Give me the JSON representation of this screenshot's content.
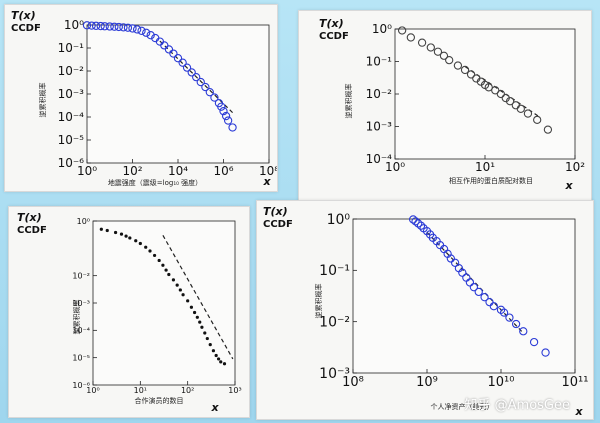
{
  "watermark": "知乎 @AmosGee",
  "chart_data": [
    {
      "type": "scatter",
      "corner_label_1": "T(x)",
      "corner_label_2": "CCDF",
      "ylabel": "逆累积概率",
      "xlabel": "地震强度（震级=log₁₀ 强度）",
      "xvar": "x",
      "log_x": true,
      "log_y": true,
      "xlim": [
        1,
        100000000
      ],
      "ylim": [
        1e-06,
        1
      ],
      "x_ticks": [
        {
          "v": 1,
          "label": "10⁰"
        },
        {
          "v": 100,
          "label": "10²"
        },
        {
          "v": 10000,
          "label": "10⁴"
        },
        {
          "v": 1000000,
          "label": "10⁶"
        },
        {
          "v": 100000000,
          "label": "10⁸"
        }
      ],
      "y_ticks": [
        {
          "v": 1,
          "label": "10⁰"
        },
        {
          "v": 0.1,
          "label": "10⁻¹"
        },
        {
          "v": 0.01,
          "label": "10⁻²"
        },
        {
          "v": 0.001,
          "label": "10⁻³"
        },
        {
          "v": 0.0001,
          "label": "10⁻⁴"
        },
        {
          "v": 1e-05,
          "label": "10⁻⁵"
        },
        {
          "v": 1e-06,
          "label": "10⁻⁶"
        }
      ],
      "marker": "circle",
      "marker_color": "#2b3bd6",
      "series": [
        {
          "points": [
            [
              1,
              0.97
            ],
            [
              1.6,
              0.94
            ],
            [
              2.5,
              0.92
            ],
            [
              4,
              0.9
            ],
            [
              6,
              0.88
            ],
            [
              10,
              0.86
            ],
            [
              16,
              0.84
            ],
            [
              25,
              0.82
            ],
            [
              40,
              0.79
            ],
            [
              63,
              0.76
            ],
            [
              100,
              0.71
            ],
            [
              160,
              0.64
            ],
            [
              250,
              0.56
            ],
            [
              400,
              0.46
            ],
            [
              630,
              0.36
            ],
            [
              1000,
              0.27
            ],
            [
              1600,
              0.19
            ],
            [
              2500,
              0.13
            ],
            [
              4000,
              0.087
            ],
            [
              6300,
              0.057
            ],
            [
              10000,
              0.036
            ],
            [
              16000,
              0.023
            ],
            [
              25000,
              0.014
            ],
            [
              40000,
              0.0087
            ],
            [
              63000,
              0.0054
            ],
            [
              100000,
              0.0033
            ],
            [
              160000,
              0.002
            ],
            [
              250000,
              0.0012
            ],
            [
              400000,
              0.0007
            ],
            [
              630000,
              0.0004
            ],
            [
              800000,
              0.00028
            ],
            [
              1000000,
              0.00018
            ],
            [
              1300000,
              0.00011
            ],
            [
              1600000,
              7e-05
            ],
            [
              2500000,
              3.5e-05
            ]
          ]
        }
      ],
      "reference_line": [
        [
          1600,
          0.2
        ],
        [
          3000000,
          0.00013
        ]
      ]
    },
    {
      "type": "scatter",
      "corner_label_1": "T(x)",
      "corner_label_2": "CCDF",
      "ylabel": "逆累积概率",
      "xlabel": "相互作用的蛋白质配对数目",
      "xvar": "x",
      "log_x": true,
      "log_y": true,
      "xlim": [
        1,
        100
      ],
      "ylim": [
        0.0001,
        1
      ],
      "x_ticks": [
        {
          "v": 1,
          "label": "10⁰"
        },
        {
          "v": 10,
          "label": "10¹"
        },
        {
          "v": 100,
          "label": "10²"
        }
      ],
      "y_ticks": [
        {
          "v": 1,
          "label": "10⁰"
        },
        {
          "v": 0.1,
          "label": "10⁻¹"
        },
        {
          "v": 0.01,
          "label": "10⁻²"
        },
        {
          "v": 0.001,
          "label": "10⁻³"
        },
        {
          "v": 0.0001,
          "label": "10⁻⁴"
        }
      ],
      "marker": "circle",
      "marker_color": "#444444",
      "series": [
        {
          "points": [
            [
              1.2,
              0.9
            ],
            [
              1.5,
              0.55
            ],
            [
              2,
              0.38
            ],
            [
              2.5,
              0.27
            ],
            [
              3,
              0.2
            ],
            [
              3.5,
              0.15
            ],
            [
              4,
              0.11
            ],
            [
              5,
              0.075
            ],
            [
              6,
              0.055
            ],
            [
              7,
              0.04
            ],
            [
              8,
              0.03
            ],
            [
              9,
              0.024
            ],
            [
              10,
              0.019
            ],
            [
              11,
              0.016
            ],
            [
              13,
              0.013
            ],
            [
              15,
              0.01
            ],
            [
              17,
              0.0075
            ],
            [
              19,
              0.006
            ],
            [
              22,
              0.0045
            ],
            [
              25,
              0.0035
            ],
            [
              30,
              0.0025
            ],
            [
              38,
              0.0016
            ],
            [
              50,
              0.0008
            ]
          ]
        }
      ],
      "reference_line": [
        [
          6,
          0.07
        ],
        [
          40,
          0.002
        ]
      ]
    },
    {
      "type": "scatter",
      "corner_label_1": "T(x)",
      "corner_label_2": "CCDF",
      "ylabel": "逆累积概率",
      "xlabel": "合作演员的数目",
      "xvar": "x",
      "log_x": true,
      "log_y": true,
      "xlim": [
        1,
        1000
      ],
      "ylim": [
        1e-06,
        1
      ],
      "x_ticks": [
        {
          "v": 1,
          "label": "10⁰"
        },
        {
          "v": 10,
          "label": "10¹"
        },
        {
          "v": 100,
          "label": "10²"
        },
        {
          "v": 1000,
          "label": "10³"
        }
      ],
      "y_ticks": [
        {
          "v": 1,
          "label": "10⁰"
        },
        {
          "v": 0.01,
          "label": "10⁻²"
        },
        {
          "v": 0.001,
          "label": "10⁻³"
        },
        {
          "v": 0.0001,
          "label": "10⁻⁴"
        },
        {
          "v": 1e-05,
          "label": "10⁻⁵"
        },
        {
          "v": 1e-06,
          "label": "10⁻⁶"
        }
      ],
      "marker": "dot",
      "marker_color": "#111111",
      "series": [
        {
          "points": [
            [
              1.5,
              0.5
            ],
            [
              2,
              0.45
            ],
            [
              3,
              0.38
            ],
            [
              4,
              0.33
            ],
            [
              5,
              0.28
            ],
            [
              6,
              0.24
            ],
            [
              8,
              0.19
            ],
            [
              10,
              0.15
            ],
            [
              13,
              0.11
            ],
            [
              16,
              0.08
            ],
            [
              20,
              0.055
            ],
            [
              25,
              0.036
            ],
            [
              30,
              0.024
            ],
            [
              35,
              0.016
            ],
            [
              40,
              0.011
            ],
            [
              50,
              0.007
            ],
            [
              60,
              0.0045
            ],
            [
              70,
              0.003
            ],
            [
              80,
              0.002
            ],
            [
              100,
              0.0012
            ],
            [
              120,
              0.0007
            ],
            [
              140,
              0.00045
            ],
            [
              160,
              0.0003
            ],
            [
              180,
              0.0002
            ],
            [
              200,
              0.00013
            ],
            [
              230,
              8e-05
            ],
            [
              260,
              5e-05
            ],
            [
              300,
              3e-05
            ],
            [
              350,
              1.8e-05
            ],
            [
              400,
              1.2e-05
            ],
            [
              450,
              9e-06
            ],
            [
              500,
              7e-06
            ],
            [
              600,
              6e-06
            ]
          ]
        }
      ],
      "reference_line": [
        [
          30,
          0.3
        ],
        [
          900,
          9e-06
        ]
      ]
    },
    {
      "type": "scatter",
      "corner_label_1": "T(x)",
      "corner_label_2": "CCDF",
      "ylabel": "逆累积概率",
      "xlabel": "个人净资产（美元）",
      "xvar": "x",
      "log_x": true,
      "log_y": true,
      "xlim": [
        100000000,
        100000000000
      ],
      "ylim": [
        0.001,
        1
      ],
      "x_ticks": [
        {
          "v": 100000000,
          "label": "10⁸"
        },
        {
          "v": 1000000000,
          "label": "10⁹"
        },
        {
          "v": 10000000000,
          "label": "10¹⁰"
        },
        {
          "v": 100000000000,
          "label": "10¹¹"
        }
      ],
      "y_ticks": [
        {
          "v": 1,
          "label": "10⁰"
        },
        {
          "v": 0.1,
          "label": "10⁻¹"
        },
        {
          "v": 0.01,
          "label": "10⁻²"
        },
        {
          "v": 0.001,
          "label": "10⁻³"
        }
      ],
      "marker": "circle",
      "marker_color": "#2b3bd6",
      "series": [
        {
          "points": [
            [
              650000000,
              0.98
            ],
            [
              700000000,
              0.9
            ],
            [
              760000000,
              0.82
            ],
            [
              830000000,
              0.74
            ],
            [
              900000000,
              0.66
            ],
            [
              1000000000,
              0.58
            ],
            [
              1100000000,
              0.5
            ],
            [
              1200000000,
              0.43
            ],
            [
              1350000000,
              0.37
            ],
            [
              1500000000,
              0.31
            ],
            [
              1700000000,
              0.26
            ],
            [
              1900000000,
              0.21
            ],
            [
              2100000000,
              0.17
            ],
            [
              2400000000,
              0.14
            ],
            [
              2700000000,
              0.11
            ],
            [
              3000000000,
              0.09
            ],
            [
              3400000000,
              0.072
            ],
            [
              3800000000,
              0.058
            ],
            [
              4300000000,
              0.047
            ],
            [
              5000000000,
              0.038
            ],
            [
              6000000000,
              0.03
            ],
            [
              7000000000,
              0.024
            ],
            [
              8000000000,
              0.02
            ],
            [
              10000000000,
              0.017
            ],
            [
              11000000000,
              0.015
            ],
            [
              13000000000,
              0.012
            ],
            [
              16000000000,
              0.009
            ],
            [
              20000000000,
              0.0065
            ],
            [
              28000000000,
              0.004
            ],
            [
              40000000000,
              0.0025
            ]
          ]
        }
      ],
      "reference_line": [
        [
          1000000000,
          0.55
        ],
        [
          20000000000,
          0.006
        ]
      ]
    }
  ]
}
